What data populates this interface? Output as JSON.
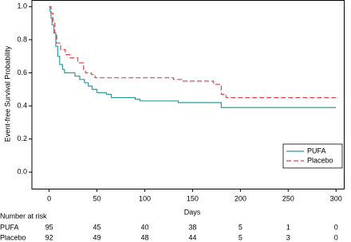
{
  "chart_data": {
    "type": "step",
    "ylabel": "Event-free Survival Probability",
    "xlabel": "Days",
    "xlim": [
      -18,
      309
    ],
    "ylim": [
      -0.1,
      1.04
    ],
    "xticks": [
      0,
      50,
      100,
      150,
      200,
      250,
      300
    ],
    "yticks": [
      {
        "value": 0,
        "label": "0.0"
      },
      {
        "value": 0.2,
        "label": "0.2"
      },
      {
        "value": 0.4,
        "label": "0.4"
      },
      {
        "value": 0.6,
        "label": "0.6"
      },
      {
        "value": 0.8,
        "label": "0.8"
      },
      {
        "value": 1,
        "label": "1.0"
      }
    ],
    "legend": "lower right",
    "series": [
      {
        "name": "PUFA",
        "color": "#2f9a9a",
        "dash": false,
        "x": [
          0,
          1,
          2,
          3,
          5,
          7,
          9,
          11,
          14,
          16,
          25,
          27,
          32,
          37,
          41,
          45,
          50,
          60,
          65,
          90,
          95,
          135,
          180,
          300
        ],
        "values": [
          1.0,
          0.97,
          0.93,
          0.89,
          0.84,
          0.76,
          0.7,
          0.65,
          0.62,
          0.6,
          0.6,
          0.58,
          0.56,
          0.54,
          0.52,
          0.5,
          0.48,
          0.47,
          0.45,
          0.44,
          0.43,
          0.42,
          0.39,
          0.39
        ]
      },
      {
        "name": "Placebo",
        "color": "#e8444c",
        "dash": true,
        "x": [
          0,
          2,
          4,
          6,
          8,
          12,
          17,
          22,
          30,
          36,
          38,
          44,
          48,
          130,
          140,
          172,
          180,
          185,
          300
        ],
        "values": [
          1.0,
          0.96,
          0.9,
          0.84,
          0.78,
          0.74,
          0.71,
          0.69,
          0.66,
          0.62,
          0.6,
          0.59,
          0.57,
          0.56,
          0.55,
          0.53,
          0.47,
          0.45,
          0.45
        ]
      }
    ],
    "risk_table": {
      "title": "Number at risk",
      "rows": [
        {
          "name": "PUFA",
          "values": [
            95,
            45,
            40,
            38,
            5,
            1,
            0
          ]
        },
        {
          "name": "Placebo",
          "values": [
            92,
            49,
            48,
            44,
            5,
            3,
            0
          ]
        }
      ]
    }
  }
}
